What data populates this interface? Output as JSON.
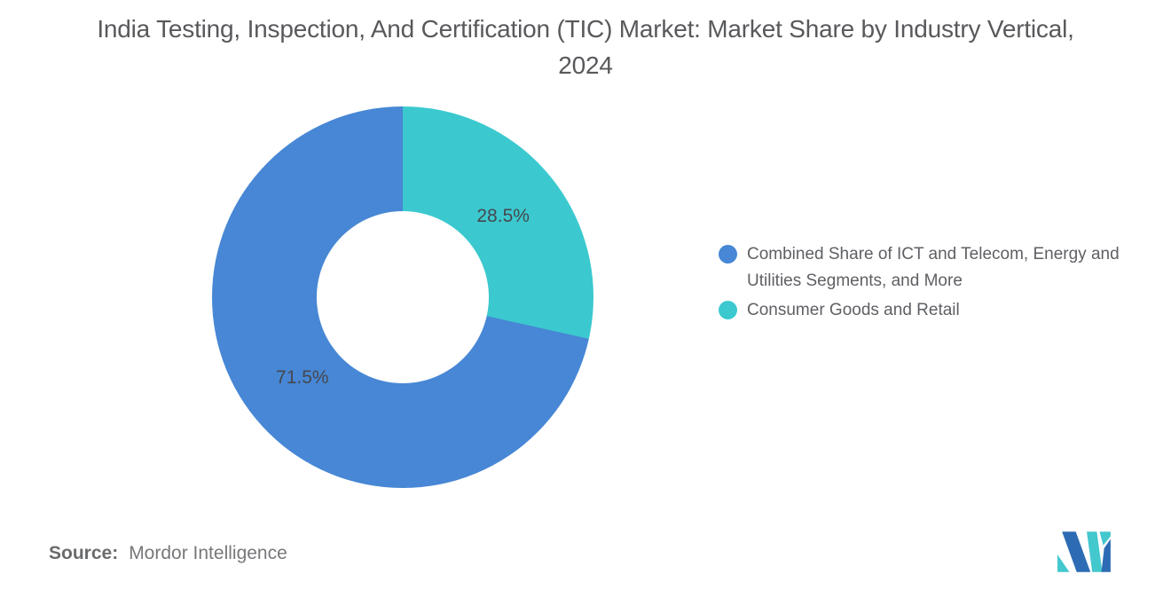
{
  "chart_data": {
    "type": "pie",
    "subtype": "donut",
    "title": "India Testing, Inspection, And Certification (TIC) Market: Market Share by Industry Vertical, 2024",
    "unit": "%",
    "start_angle_deg": 0,
    "direction": "counterclockwise",
    "donut_hole_ratio": 0.45,
    "legend_position": "right",
    "segments": [
      {
        "label": "Combined Share of ICT and Telecom, Energy and Utilities Segments, and More",
        "value": 71.5,
        "data_label": "71.5%",
        "color": "#4787d5"
      },
      {
        "label": "Consumer Goods and Retail",
        "value": 28.5,
        "data_label": "28.5%",
        "color": "#3bc9cf"
      }
    ]
  },
  "source": {
    "prefix": "Source:",
    "name": "Mordor Intelligence"
  },
  "logo": {
    "name": "mordor-intelligence-logo",
    "blue": "#2d6cb4",
    "teal": "#43c8ce"
  }
}
